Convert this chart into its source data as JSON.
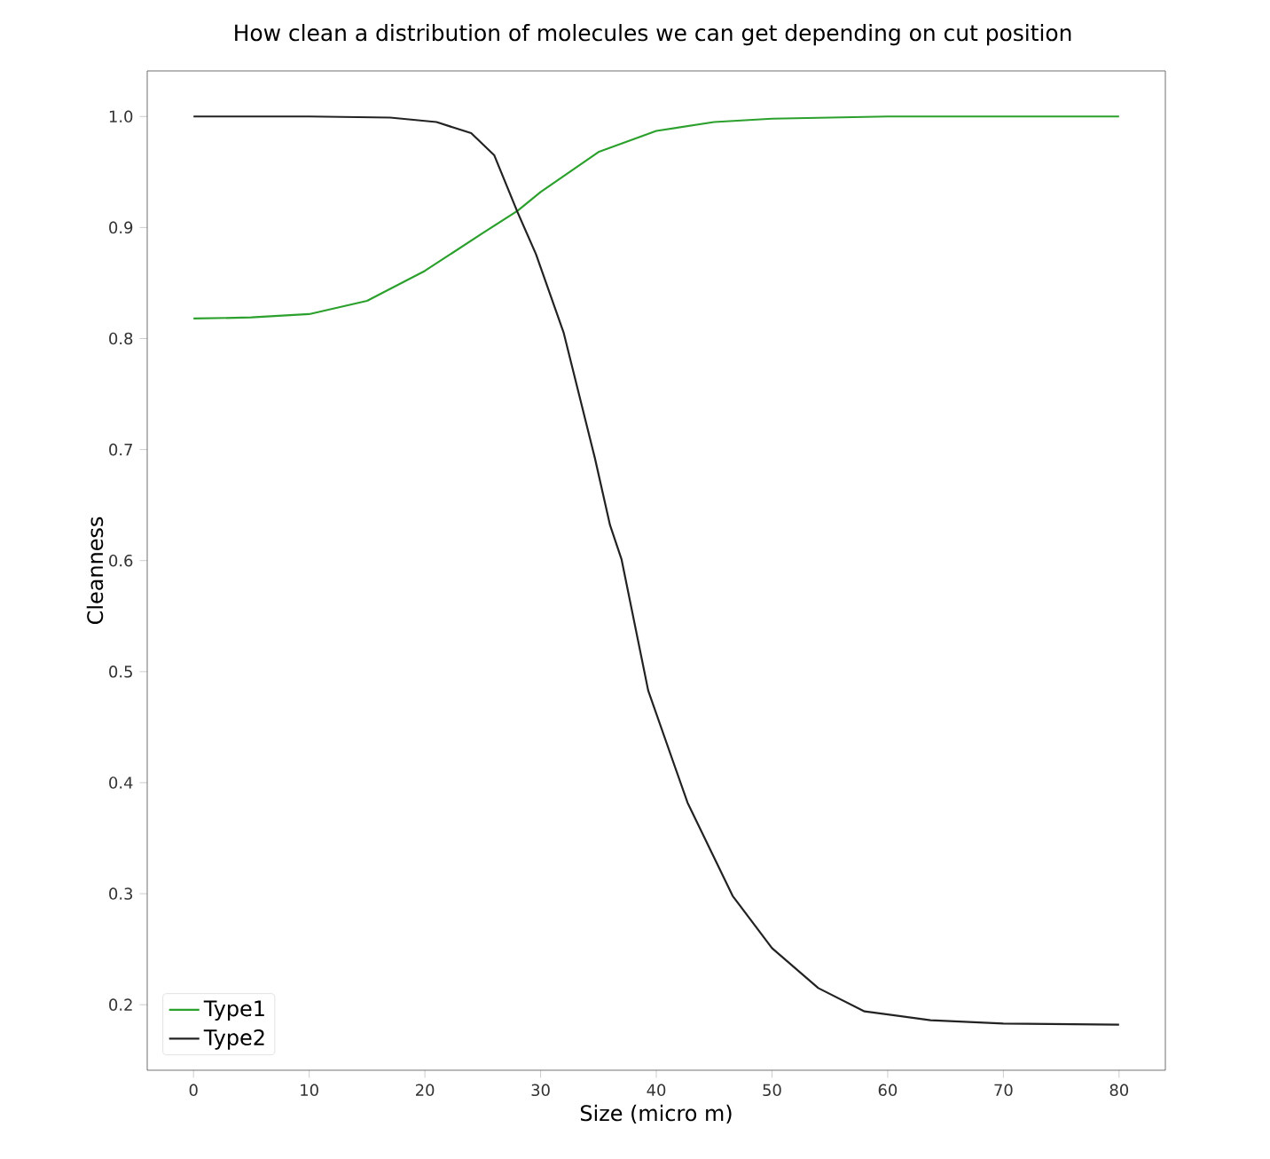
{
  "chart_data": {
    "type": "line",
    "title": "How clean a distribution of molecules we can get depending on cut position",
    "xlabel": "Size (micro m)",
    "ylabel": "Cleanness",
    "xlim": [
      -4,
      84
    ],
    "ylim": [
      0.141,
      1.041
    ],
    "xticks": [
      0,
      10,
      20,
      30,
      40,
      50,
      60,
      70,
      80
    ],
    "yticks": [
      0.2,
      0.3,
      0.4,
      0.5,
      0.6,
      0.7,
      0.8,
      0.9,
      {
        "value": 1.0,
        "label": "1.0"
      }
    ],
    "legend": "bottom left",
    "grid": false,
    "marker": "none",
    "line_style": "solid",
    "series": [
      {
        "name": "Type1",
        "color": "#2ca02c",
        "x": [
          0,
          5,
          10,
          15,
          20,
          25,
          28,
          30,
          35,
          40,
          45,
          50,
          60,
          70,
          80
        ],
        "values": [
          0.818,
          0.819,
          0.822,
          0.834,
          0.861,
          0.895,
          0.915,
          0.932,
          0.968,
          0.987,
          0.995,
          0.998,
          1.0,
          1.0,
          1.0
        ]
      },
      {
        "name": "Type2",
        "color": "#222222",
        "x": [
          0,
          10,
          17,
          21,
          24,
          26,
          28,
          29.6,
          32,
          34.7,
          36,
          37,
          39.3,
          42.7,
          46.6,
          50,
          54,
          58,
          63.7,
          70,
          80
        ],
        "values": [
          1.0,
          1.0,
          0.999,
          0.995,
          0.985,
          0.965,
          0.914,
          0.876,
          0.805,
          0.692,
          0.632,
          0.601,
          0.483,
          0.382,
          0.298,
          0.251,
          0.215,
          0.194,
          0.186,
          0.183,
          0.182
        ]
      }
    ]
  }
}
